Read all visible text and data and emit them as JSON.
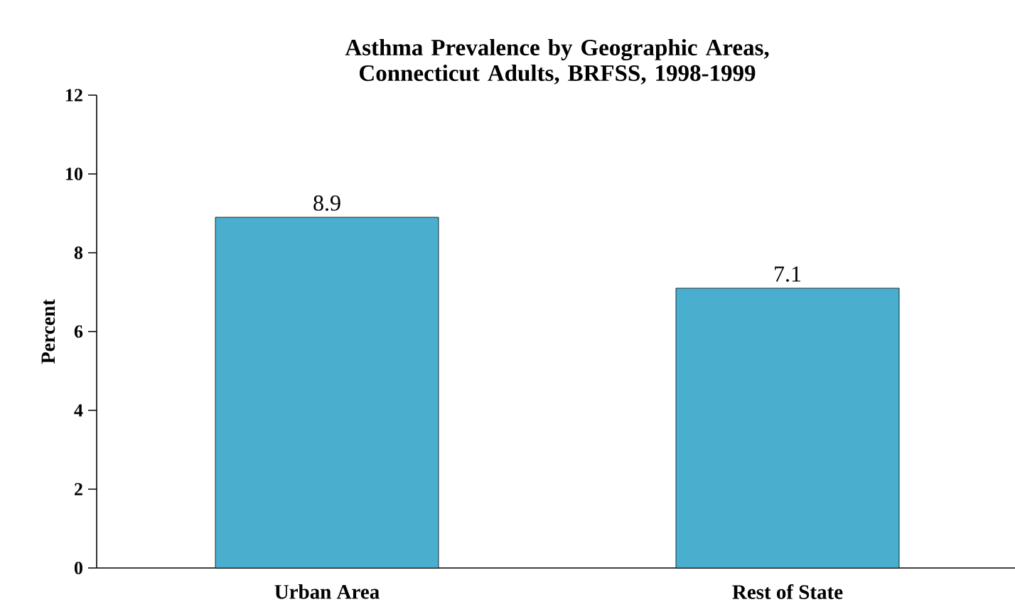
{
  "chart_data": {
    "type": "bar",
    "title": "Asthma Prevalence by Geographic Areas, Connecticut Adults, BRFSS, 1998-1999",
    "ylabel": "Percent",
    "categories": [
      "Urban Area",
      "Rest of State"
    ],
    "values": [
      8.9,
      7.1
    ],
    "color": "#4aafcf",
    "ylim": [
      0,
      12
    ],
    "yticks": [
      0,
      2,
      4,
      6,
      8,
      10,
      12
    ],
    "data_labels": true,
    "grid": false
  }
}
